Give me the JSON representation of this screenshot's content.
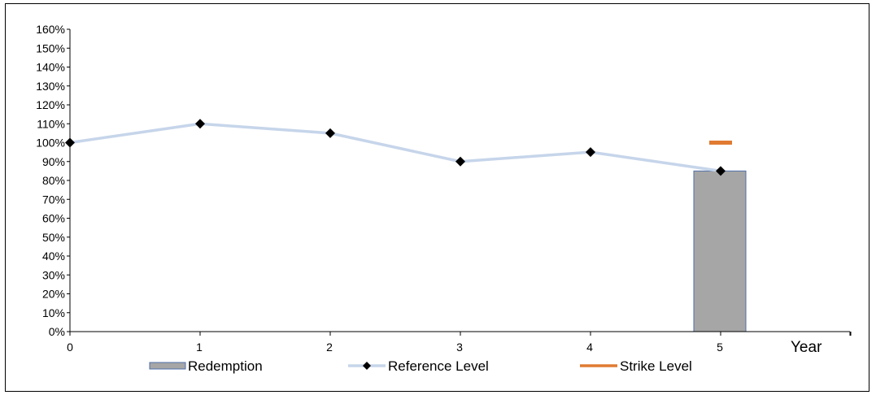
{
  "chart_data": {
    "type": "line",
    "title": "",
    "xlabel": "Year",
    "ylabel": "",
    "x": [
      0,
      1,
      2,
      3,
      4,
      5
    ],
    "x_tick_labels": [
      "0",
      "1",
      "2",
      "3",
      "4",
      "5"
    ],
    "ylim": [
      0,
      1.6
    ],
    "y_tick_labels": [
      "0%",
      "10%",
      "20%",
      "30%",
      "40%",
      "50%",
      "60%",
      "70%",
      "80%",
      "90%",
      "100%",
      "110%",
      "120%",
      "130%",
      "140%",
      "150%",
      "160%"
    ],
    "grid": false,
    "legend_position": "bottom",
    "series": [
      {
        "name": "Redemption",
        "kind": "bar",
        "x": [
          5
        ],
        "values": [
          0.85
        ],
        "color": "#a6a6a6",
        "edge_color": "#4f6fa8"
      },
      {
        "name": "Reference Level",
        "kind": "line",
        "x": [
          0,
          1,
          2,
          3,
          4,
          5
        ],
        "values": [
          1.0,
          1.1,
          1.05,
          0.9,
          0.95,
          0.85
        ],
        "color": "#c6d5ea",
        "marker_color": "#000000",
        "marker": "diamond"
      },
      {
        "name": "Strike Level",
        "kind": "marker",
        "x": [
          5
        ],
        "values": [
          1.0
        ],
        "color": "#e07b31"
      }
    ]
  }
}
